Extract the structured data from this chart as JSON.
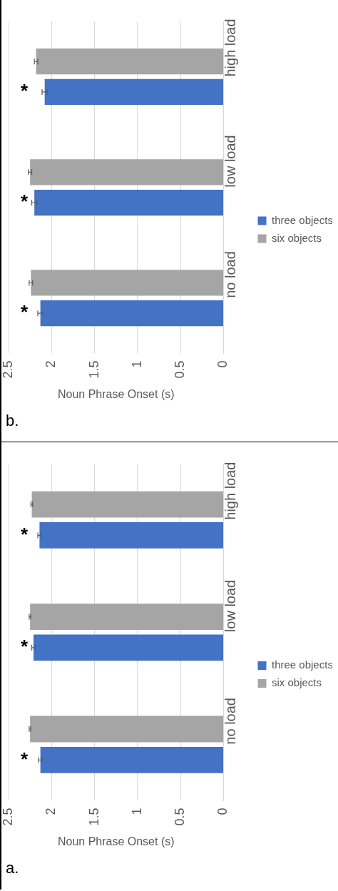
{
  "chart_data": [
    {
      "type": "bar",
      "orientation": "horizontal",
      "title": "b.",
      "xlabel": "Noun Phrase Onset (s)",
      "categories": [
        "high load",
        "low load",
        "no load"
      ],
      "series": [
        {
          "name": "six objects",
          "color": "#a5a5a5",
          "values": [
            2.18,
            2.25,
            2.24
          ],
          "errors": [
            0.02,
            0.02,
            0.02
          ]
        },
        {
          "name": "three objects",
          "color": "#4472c4",
          "values": [
            2.08,
            2.2,
            2.13
          ],
          "errors": [
            0.03,
            0.03,
            0.03
          ]
        }
      ],
      "xlim": [
        2.5,
        0
      ],
      "xticks": [
        2.5,
        2,
        1.5,
        1,
        0.5,
        0
      ],
      "grid": "x",
      "legend": "right",
      "annotations": [
        "*",
        "*",
        "*"
      ]
    },
    {
      "type": "bar",
      "orientation": "horizontal",
      "title": "a.",
      "xlabel": "Noun Phrase Onset (s)",
      "categories": [
        "high load",
        "low load",
        "no load"
      ],
      "series": [
        {
          "name": "six objects",
          "color": "#a5a5a5",
          "values": [
            2.23,
            2.25,
            2.25
          ],
          "errors": [
            0.01,
            0.01,
            0.01
          ]
        },
        {
          "name": "three objects",
          "color": "#4472c4",
          "values": [
            2.14,
            2.21,
            2.13
          ],
          "errors": [
            0.02,
            0.02,
            0.02
          ]
        }
      ],
      "xlim": [
        2.5,
        0
      ],
      "xticks": [
        2.5,
        2,
        1.5,
        1,
        0.5,
        0
      ],
      "grid": "x",
      "legend": "right",
      "annotations": [
        "*",
        "*",
        "*"
      ]
    }
  ]
}
